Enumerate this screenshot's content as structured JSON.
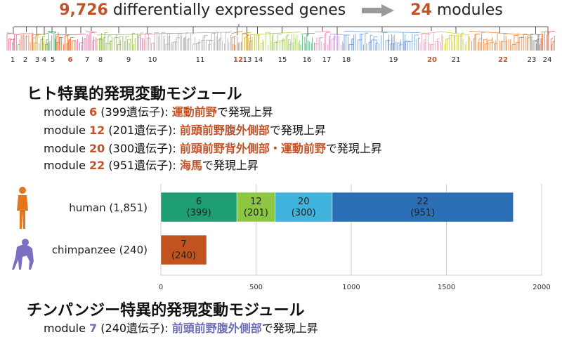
{
  "headline": {
    "count": "9,726",
    "text1": " differentially expressed genes",
    "modules_count": "24",
    "text2": " modules"
  },
  "dendrogram": {
    "module_labels": [
      "1",
      "2",
      "3",
      "4",
      "5",
      "6",
      "7",
      "8",
      "9",
      "10",
      "11",
      "12",
      "13",
      "14",
      "15",
      "16",
      "17",
      "18",
      "19",
      "20",
      "21",
      "22",
      "23",
      "24"
    ],
    "highlighted": [
      "6",
      "12",
      "20",
      "22"
    ],
    "colors": [
      "#e86a8a",
      "#f07c5a",
      "#c8a030",
      "#8aa030",
      "#40a86a",
      "#e86a2a",
      "#e85a9a",
      "#e06aa0",
      "#90c030",
      "#e890b0",
      "#b0b0b0",
      "#e07a3a",
      "#d0a030",
      "#c0d040",
      "#a8d060",
      "#50b080",
      "#e890c0",
      "#c0a0d0",
      "#6a9ad8",
      "#e8a0c0",
      "#d0d040",
      "#f08030",
      "#808080",
      "#d07050"
    ]
  },
  "human_section": {
    "title": "ヒト特異的発現変動モジュール",
    "lines": [
      {
        "prefix": "module ",
        "num": "6",
        "mid": "   (399遺伝子): ",
        "region": "運動前野",
        "suffix": "で発現上昇"
      },
      {
        "prefix": "module ",
        "num": "12",
        "mid": " (201遺伝子): ",
        "region": "前頭前野腹外側部",
        "suffix": "で発現上昇"
      },
      {
        "prefix": "module ",
        "num": "20",
        "mid": " (300遺伝子): ",
        "region": "前頭前野背外側部・運動前野",
        "suffix": "で発現上昇"
      },
      {
        "prefix": "module ",
        "num": "22",
        "mid": " (951遺伝子): ",
        "region": "海馬",
        "suffix": "で発現上昇"
      }
    ]
  },
  "chimp_section": {
    "title": "チンパンジー特異的発現変動モジュール",
    "line": {
      "prefix": "module ",
      "num": "7",
      "mid": " (240遺伝子): ",
      "region": "前頭前野腹外側部",
      "suffix": "で発現上昇"
    }
  },
  "chart_data": {
    "type": "bar",
    "orientation": "horizontal",
    "stacked": true,
    "rows": [
      {
        "label": "human (1,851)",
        "segments": [
          {
            "module": "6",
            "value": 399,
            "label_line1": "6",
            "label_line2": "(399)",
            "color": "#1f9e72"
          },
          {
            "module": "12",
            "value": 201,
            "label_line1": "12",
            "label_line2": "(201)",
            "color": "#8dc63f"
          },
          {
            "module": "20",
            "value": 300,
            "label_line1": "20",
            "label_line2": "(300)",
            "color": "#3fb3dc"
          },
          {
            "module": "22",
            "value": 951,
            "label_line1": "22",
            "label_line2": "(951)",
            "color": "#2a6fb5"
          }
        ]
      },
      {
        "label": "chimpanzee (240)",
        "segments": [
          {
            "module": "7",
            "value": 240,
            "label_line1": "7",
            "label_line2": "(240)",
            "color": "#c0531f"
          }
        ]
      }
    ],
    "xlim": [
      0,
      2000
    ],
    "xticks": [
      "0",
      "500",
      "1000",
      "1500",
      "2000"
    ],
    "grid": true,
    "human_icon_color": "#e2771e",
    "chimp_icon_color": "#7b6fc4"
  }
}
